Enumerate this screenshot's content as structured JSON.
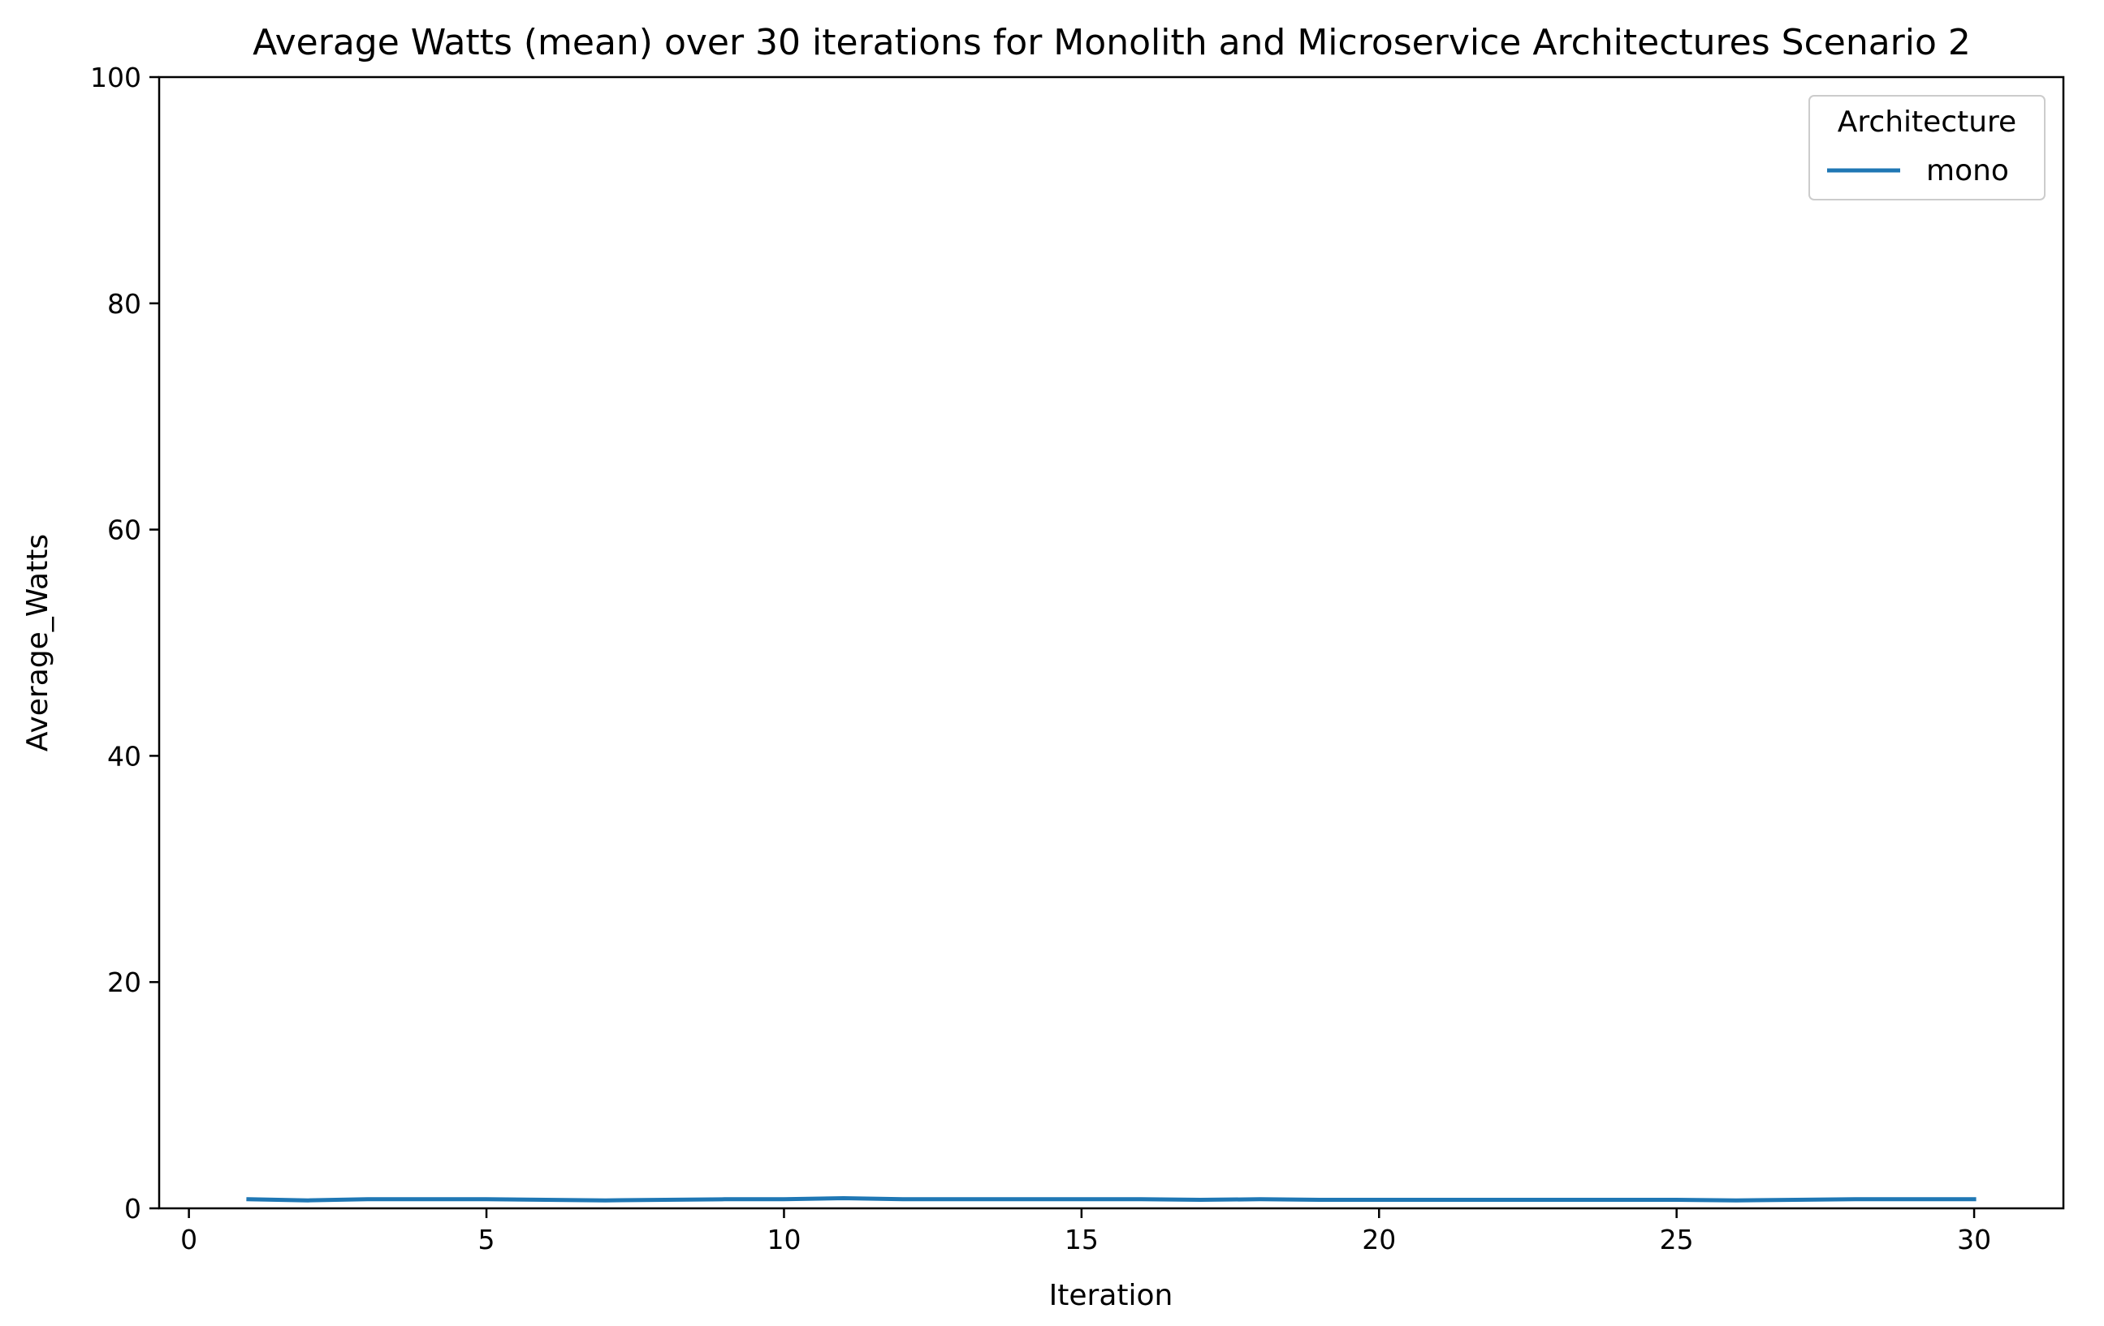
{
  "chart_data": {
    "type": "line",
    "title": "Average Watts (mean) over 30 iterations for Monolith and Microservice Architectures Scenario 2",
    "xlabel": "Iteration",
    "ylabel": "Average_Watts",
    "xlim": [
      -0.5,
      31.5
    ],
    "ylim": [
      0,
      100
    ],
    "xticks": [
      0,
      5,
      10,
      15,
      20,
      25,
      30
    ],
    "yticks": [
      0,
      20,
      40,
      60,
      80,
      100
    ],
    "grid": false,
    "legend": {
      "title": "Architecture",
      "placement": "top-right"
    },
    "series": [
      {
        "name": "mono",
        "color": "#1f77b4",
        "x": [
          1,
          2,
          3,
          4,
          5,
          6,
          7,
          8,
          9,
          10,
          11,
          12,
          13,
          14,
          15,
          16,
          17,
          18,
          19,
          20,
          21,
          22,
          23,
          24,
          25,
          26,
          27,
          28,
          29,
          30
        ],
        "y": [
          0.8,
          0.7,
          0.8,
          0.8,
          0.8,
          0.75,
          0.7,
          0.75,
          0.8,
          0.8,
          0.9,
          0.8,
          0.8,
          0.8,
          0.8,
          0.8,
          0.75,
          0.8,
          0.75,
          0.75,
          0.75,
          0.75,
          0.75,
          0.75,
          0.75,
          0.7,
          0.75,
          0.8,
          0.8,
          0.8
        ]
      }
    ]
  }
}
